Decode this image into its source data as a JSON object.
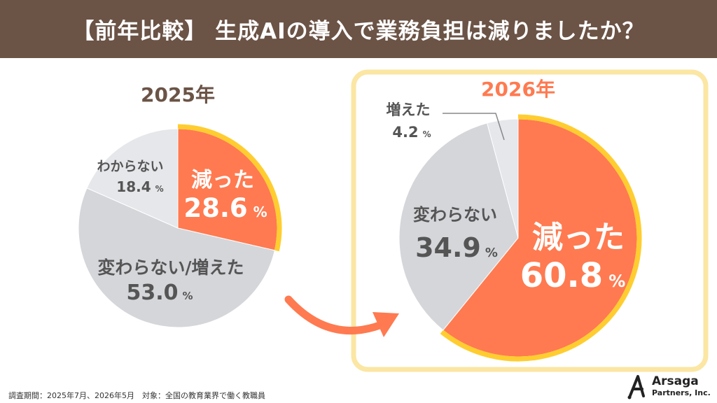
{
  "header": {
    "title": "【前年比較】 生成AIの導入で業務負担は減りましたか？"
  },
  "colors": {
    "banner": "#6b5346",
    "decreased": "#ff7a50",
    "no_change": "#d5d6da",
    "unknown": "#e6e7ea",
    "outline_yellow": "#ffcd2f",
    "highlight_frame": "#fbe6a3",
    "year_2025": "#6b5346",
    "year_2026": "#ff7a50"
  },
  "chart_data": [
    {
      "type": "pie",
      "title": "2025年",
      "slices": [
        {
          "label": "減った",
          "value": 28.6,
          "unit": "%"
        },
        {
          "label": "変わらない/増えた",
          "value": 53.0,
          "unit": "%"
        },
        {
          "label": "わからない",
          "value": 18.4,
          "unit": "%"
        }
      ]
    },
    {
      "type": "pie",
      "title": "2026年",
      "slices": [
        {
          "label": "減った",
          "value": 60.8,
          "unit": "%"
        },
        {
          "label": "変わらない",
          "value": 34.9,
          "unit": "%"
        },
        {
          "label": "増えた",
          "value": 4.2,
          "unit": "%"
        }
      ]
    }
  ],
  "footer": {
    "note": "調査期間：2025年7月、2026年5月　対象：全国の教育業界で働く教職員",
    "logo_name": "Arsaga",
    "logo_sub": "Partners, Inc."
  }
}
